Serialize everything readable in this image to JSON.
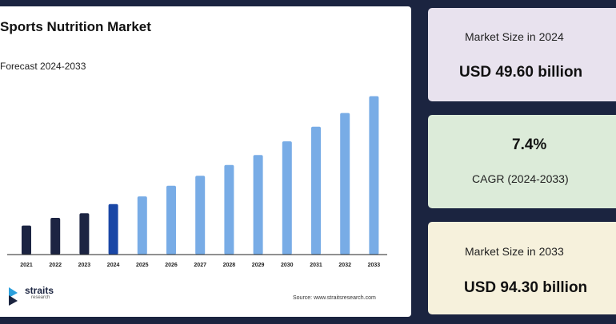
{
  "chart_data": {
    "type": "bar",
    "title": "Sports Nutrition Market",
    "subtitle": "Forecast 2024-2033",
    "categories": [
      "2021",
      "2022",
      "2023",
      "2024",
      "2025",
      "2026",
      "2027",
      "2028",
      "2029",
      "2030",
      "2031",
      "2032",
      "2033"
    ],
    "values": [
      38,
      48,
      54,
      66,
      76,
      90,
      103,
      117,
      130,
      148,
      167,
      185,
      207
    ],
    "ylim": [
      0,
      220
    ],
    "value_unit": "relative (no axis printed)",
    "colors": [
      "#1c2442",
      "#1c2442",
      "#1c2442",
      "#1a47a6",
      "#78ace6",
      "#78ace6",
      "#78ace6",
      "#78ace6",
      "#78ace6",
      "#78ace6",
      "#78ace6",
      "#78ace6",
      "#78ace6"
    ],
    "grid": false,
    "legend": "none"
  },
  "branding": {
    "logo_name": "straits",
    "logo_sub": "research",
    "source": "Source: www.straitsresearch.com"
  },
  "cards": {
    "size_2024": {
      "label": "Market Size in 2024",
      "value": "USD 49.60 billion"
    },
    "cagr": {
      "value": "7.4%",
      "label": "CAGR (2024-2033)"
    },
    "size_2033": {
      "label": "Market Size in 2033",
      "value": "USD 94.30 billion"
    }
  }
}
